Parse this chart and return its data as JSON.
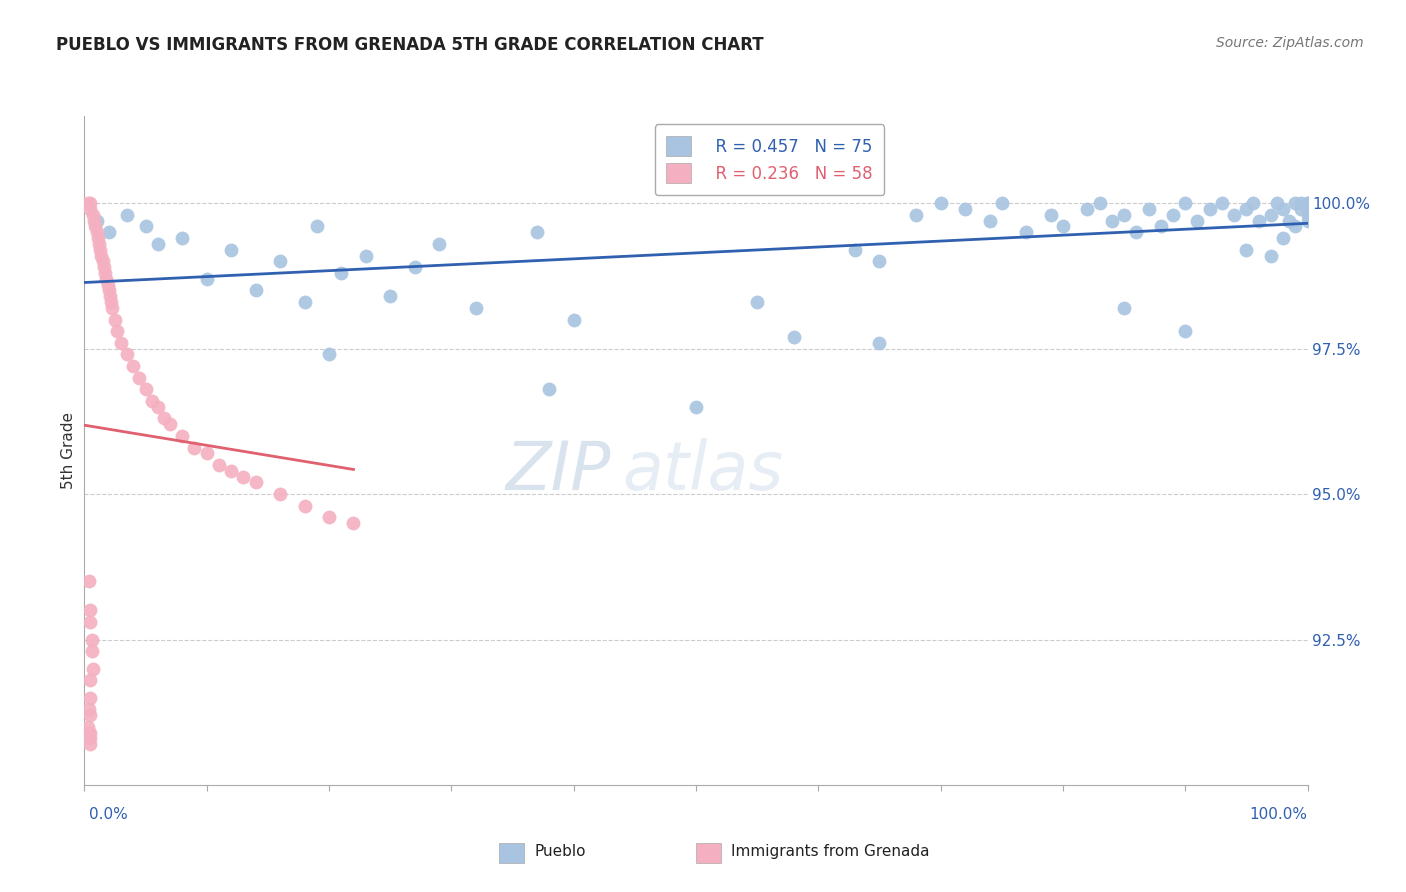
{
  "title": "PUEBLO VS IMMIGRANTS FROM GRENADA 5TH GRADE CORRELATION CHART",
  "source": "Source: ZipAtlas.com",
  "ylabel": "5th Grade",
  "ytick_values": [
    92.5,
    95.0,
    97.5,
    100.0
  ],
  "xlim": [
    0.0,
    100.0
  ],
  "ylim": [
    90.0,
    101.5
  ],
  "legend_blue_r": "R = 0.457",
  "legend_blue_n": "N = 75",
  "legend_pink_r": "R = 0.236",
  "legend_pink_n": "N = 58",
  "blue_color": "#a8c4e0",
  "blue_line_color": "#3060b0",
  "pink_color": "#f4b0c0",
  "pink_line_color": "#e06070",
  "watermark_color": "#d0dff0",
  "background_color": "#ffffff",
  "grid_color": "#cccccc",
  "axis_color": "#aaaaaa",
  "tick_label_color": "#3060b0",
  "title_color": "#222222",
  "source_color": "#777777",
  "ylabel_color": "#333333"
}
